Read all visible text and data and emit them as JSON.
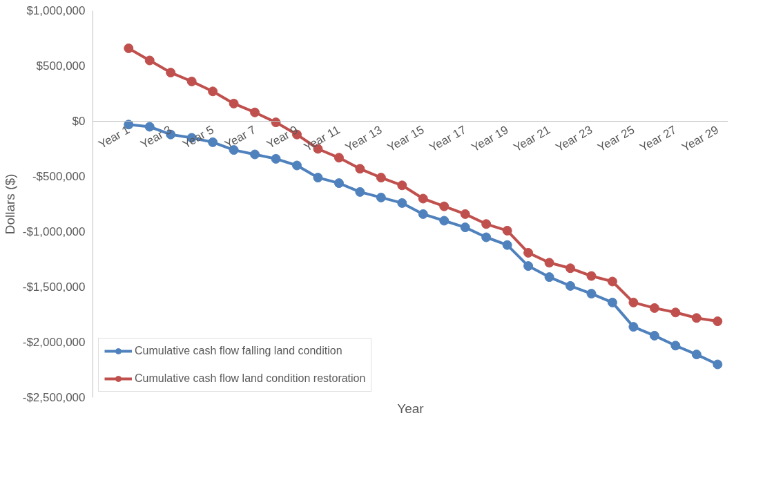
{
  "chart_data": {
    "type": "line",
    "xlabel": "Year",
    "ylabel": "Dollars ($)",
    "categories": [
      "Year 1",
      null,
      "Year 3",
      null,
      "Year 5",
      null,
      "Year 7",
      null,
      "Year 9",
      null,
      "Year 11",
      null,
      "Year 13",
      null,
      "Year 15",
      null,
      "Year 17",
      null,
      "Year 19",
      null,
      "Year 21",
      null,
      "Year 23",
      null,
      "Year 25",
      null,
      "Year 27",
      null,
      "Year 29"
    ],
    "series": [
      {
        "name": "Cumulative cash flow falling land condition",
        "color": "#4f81bd",
        "values": [
          -30000,
          -50000,
          -120000,
          -150000,
          -190000,
          -260000,
          -300000,
          -340000,
          -400000,
          -510000,
          -560000,
          -640000,
          -690000,
          -740000,
          -840000,
          -900000,
          -960000,
          -1050000,
          -1120000,
          -1310000,
          -1410000,
          -1490000,
          -1560000,
          -1640000,
          -1860000,
          -1940000,
          -2030000,
          -2110000,
          -2200000
        ]
      },
      {
        "name": "Cumulative cash flow land condition restoration",
        "color": "#c0504d",
        "values": [
          660000,
          550000,
          440000,
          360000,
          270000,
          160000,
          80000,
          -10000,
          -120000,
          -250000,
          -330000,
          -430000,
          -510000,
          -580000,
          -700000,
          -770000,
          -840000,
          -930000,
          -990000,
          -1190000,
          -1280000,
          -1330000,
          -1400000,
          -1450000,
          -1640000,
          -1690000,
          -1730000,
          -1780000,
          -1810000
        ]
      }
    ],
    "ylim": [
      -2500000,
      1000000
    ],
    "yticks": [
      {
        "value": 1000000,
        "label": "$1,000,000"
      },
      {
        "value": 500000,
        "label": "$500,000"
      },
      {
        "value": 0,
        "label": "$0"
      },
      {
        "value": -500000,
        "label": "-$500,000"
      },
      {
        "value": -1000000,
        "label": "-$1,000,000"
      },
      {
        "value": -1500000,
        "label": "-$1,500,000"
      },
      {
        "value": -2000000,
        "label": "-$2,000,000"
      },
      {
        "value": -2500000,
        "label": "-$2,500,000"
      }
    ],
    "grid": false,
    "legend": "bottom left",
    "marker": "circle",
    "line_style": "solid"
  }
}
